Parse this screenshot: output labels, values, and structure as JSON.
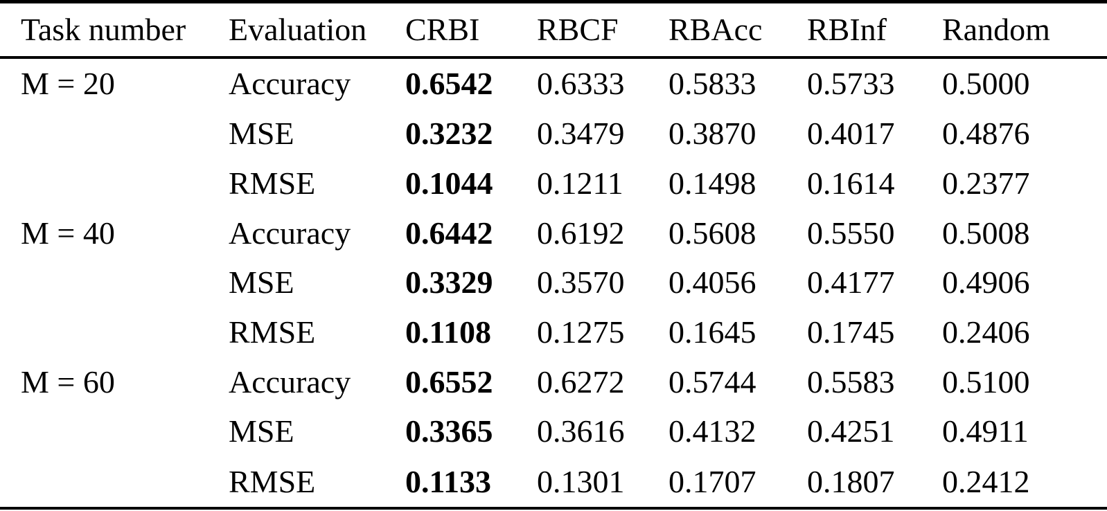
{
  "page": {
    "background_color": "#ffffff",
    "text_color": "#000000"
  },
  "table": {
    "columns": [
      "Task number",
      "Evaluation",
      "CRBI",
      "RBCF",
      "RBAcc",
      "RBInf",
      "Random"
    ],
    "bold_column": "CRBI",
    "groups": [
      {
        "task": "M = 20",
        "rows": [
          {
            "evaluation": "Accuracy",
            "values": [
              "0.6542",
              "0.6333",
              "0.5833",
              "0.5733",
              "0.5000"
            ]
          },
          {
            "evaluation": "MSE",
            "values": [
              "0.3232",
              "0.3479",
              "0.3870",
              "0.4017",
              "0.4876"
            ]
          },
          {
            "evaluation": "RMSE",
            "values": [
              "0.1044",
              "0.1211",
              "0.1498",
              "0.1614",
              "0.2377"
            ]
          }
        ]
      },
      {
        "task": "M = 40",
        "rows": [
          {
            "evaluation": "Accuracy",
            "values": [
              "0.6442",
              "0.6192",
              "0.5608",
              "0.5550",
              "0.5008"
            ]
          },
          {
            "evaluation": "MSE",
            "values": [
              "0.3329",
              "0.3570",
              "0.4056",
              "0.4177",
              "0.4906"
            ]
          },
          {
            "evaluation": "RMSE",
            "values": [
              "0.1108",
              "0.1275",
              "0.1645",
              "0.1745",
              "0.2406"
            ]
          }
        ]
      },
      {
        "task": "M = 60",
        "rows": [
          {
            "evaluation": "Accuracy",
            "values": [
              "0.6552",
              "0.6272",
              "0.5744",
              "0.5583",
              "0.5100"
            ]
          },
          {
            "evaluation": "MSE",
            "values": [
              "0.3365",
              "0.3616",
              "0.4132",
              "0.4251",
              "0.4911"
            ]
          },
          {
            "evaluation": "RMSE",
            "values": [
              "0.1133",
              "0.1301",
              "0.1707",
              "0.1807",
              "0.2412"
            ]
          }
        ]
      }
    ]
  }
}
